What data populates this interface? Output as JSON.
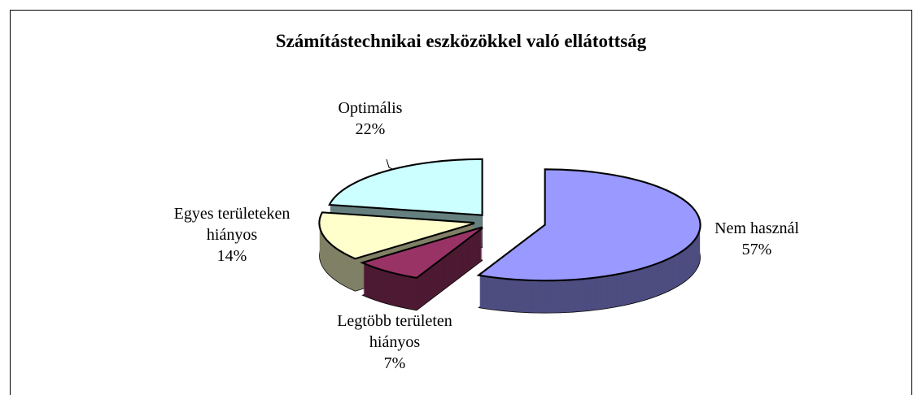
{
  "chart_data": {
    "type": "pie",
    "title": "Számítástechnikai eszközökkel való ellátottság",
    "categories": [
      "Nem használ",
      "Legtöbb területen hiányos",
      "Egyes területeken hiányos",
      "Optimális"
    ],
    "values": [
      57,
      7,
      14,
      22
    ],
    "value_labels": [
      "57%",
      "7%",
      "14%",
      "22%"
    ],
    "colors": [
      "#9999ff",
      "#993366",
      "#ffffcc",
      "#ccffff"
    ],
    "three_d": true,
    "exploded": true
  }
}
